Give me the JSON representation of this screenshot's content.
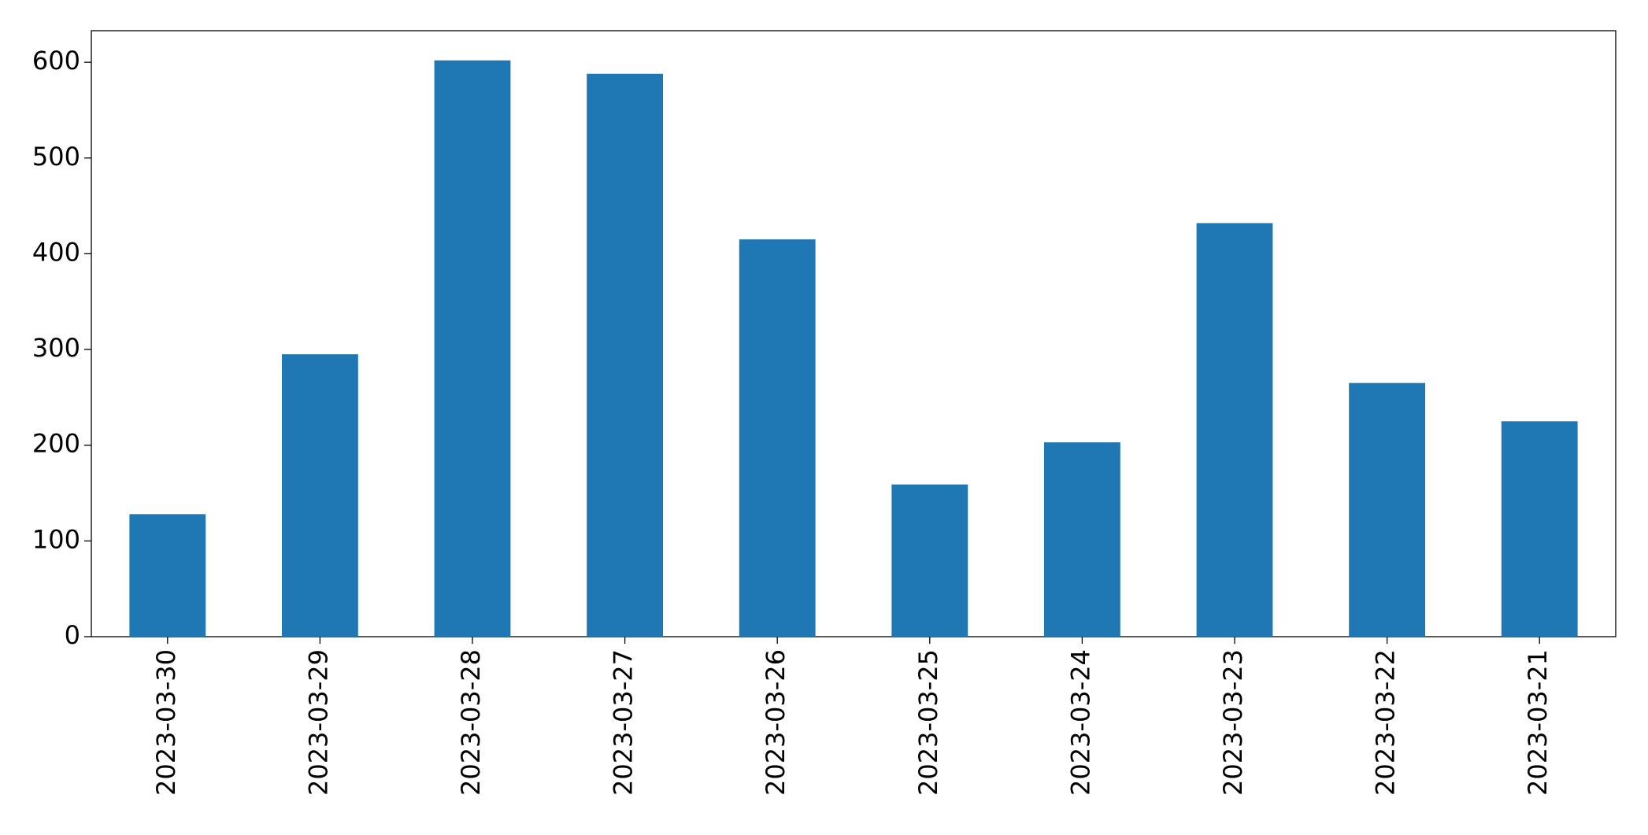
{
  "chart_data": {
    "type": "bar",
    "categories": [
      "2023-03-30",
      "2023-03-29",
      "2023-03-28",
      "2023-03-27",
      "2023-03-26",
      "2023-03-25",
      "2023-03-24",
      "2023-03-23",
      "2023-03-22",
      "2023-03-21"
    ],
    "values": [
      128,
      295,
      602,
      588,
      415,
      159,
      203,
      432,
      265,
      225
    ],
    "color": "#1f77b4",
    "ylim": [
      0,
      633
    ],
    "yticks": [
      0,
      100,
      200,
      300,
      400,
      500,
      600
    ],
    "grid": false
  }
}
